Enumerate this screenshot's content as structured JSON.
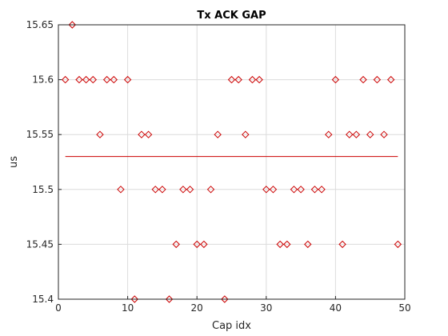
{
  "chart_data": {
    "type": "scatter",
    "title": "Tx ACK GAP",
    "xlabel": "Cap idx",
    "ylabel": "us",
    "xlim": [
      0,
      50
    ],
    "ylim": [
      15.4,
      15.65
    ],
    "grid": true,
    "xticks": [
      "0",
      "10",
      "20",
      "30",
      "40",
      "50"
    ],
    "yticks": [
      "15.4",
      "15.45",
      "15.5",
      "15.55",
      "15.6",
      "15.65"
    ],
    "marker": "diamond",
    "marker_color": "#cc0000",
    "line_color": "#cc0000",
    "series": [
      {
        "x": [
          1,
          2,
          3,
          4,
          5,
          6,
          7,
          8,
          9,
          10,
          11,
          12,
          13,
          14,
          15,
          16,
          17,
          18,
          19,
          20,
          21,
          22,
          23,
          24,
          25,
          26,
          27,
          28,
          29,
          30,
          31,
          32,
          33,
          34,
          35,
          36,
          37,
          38,
          39,
          40,
          41,
          42,
          43,
          44,
          45,
          46,
          47,
          48,
          49
        ],
        "y": [
          15.6,
          15.65,
          15.6,
          15.6,
          15.6,
          15.55,
          15.6,
          15.6,
          15.5,
          15.6,
          15.4,
          15.55,
          15.55,
          15.5,
          15.5,
          15.4,
          15.45,
          15.5,
          15.5,
          15.45,
          15.45,
          15.5,
          15.55,
          15.4,
          15.6,
          15.6,
          15.55,
          15.6,
          15.6,
          15.5,
          15.5,
          15.45,
          15.45,
          15.5,
          15.5,
          15.45,
          15.5,
          15.5,
          15.55,
          15.6,
          15.45,
          15.55,
          15.55,
          15.6,
          15.55,
          15.6,
          15.55,
          15.6,
          15.45
        ]
      }
    ],
    "mean_line": {
      "x": [
        1,
        49
      ],
      "y": 15.53
    }
  }
}
